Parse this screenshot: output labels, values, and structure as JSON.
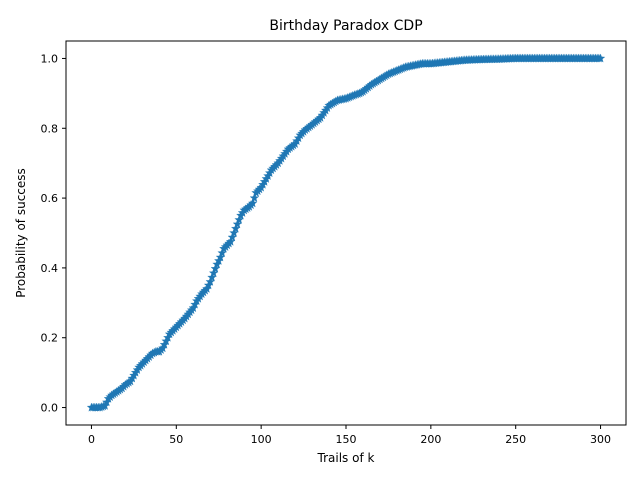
{
  "chart_data": {
    "type": "line",
    "title": "Birthday Paradox CDP",
    "xlabel": "Trails of k",
    "ylabel": "Probability of success",
    "xlim": [
      -15,
      315
    ],
    "ylim": [
      -0.05,
      1.05
    ],
    "xticks": [
      0,
      50,
      100,
      150,
      200,
      250,
      300
    ],
    "xtick_labels": [
      "0",
      "50",
      "100",
      "150",
      "200",
      "250",
      "300"
    ],
    "yticks": [
      0.0,
      0.2,
      0.4,
      0.6,
      0.8,
      1.0
    ],
    "ytick_labels": [
      "0.0",
      "0.2",
      "0.4",
      "0.6",
      "0.8",
      "1.0"
    ],
    "grid": false,
    "marker": "star",
    "line_color": "#1f77b4",
    "series": [
      {
        "x": [
          0,
          5,
          8,
          10,
          12,
          15,
          18,
          20,
          23,
          26,
          28,
          30,
          33,
          36,
          38,
          40,
          42,
          44,
          46,
          48,
          50,
          55,
          60,
          62,
          65,
          68,
          70,
          72,
          74,
          76,
          78,
          80,
          82,
          84,
          86,
          88,
          90,
          93,
          95,
          97,
          100,
          103,
          106,
          110,
          113,
          116,
          120,
          123,
          126,
          130,
          135,
          140,
          145,
          150,
          155,
          158,
          160,
          165,
          170,
          175,
          180,
          185,
          190,
          195,
          200,
          210,
          220,
          230,
          240,
          250,
          260,
          270,
          280,
          290,
          300
        ],
        "y": [
          0.0,
          0.0,
          0.005,
          0.025,
          0.035,
          0.045,
          0.055,
          0.065,
          0.075,
          0.1,
          0.115,
          0.125,
          0.14,
          0.155,
          0.16,
          0.16,
          0.17,
          0.19,
          0.21,
          0.22,
          0.23,
          0.255,
          0.285,
          0.305,
          0.325,
          0.34,
          0.36,
          0.385,
          0.41,
          0.43,
          0.455,
          0.465,
          0.475,
          0.5,
          0.525,
          0.55,
          0.565,
          0.575,
          0.585,
          0.615,
          0.63,
          0.655,
          0.68,
          0.7,
          0.72,
          0.74,
          0.755,
          0.78,
          0.795,
          0.81,
          0.83,
          0.865,
          0.88,
          0.885,
          0.895,
          0.9,
          0.905,
          0.925,
          0.94,
          0.955,
          0.965,
          0.975,
          0.98,
          0.985,
          0.985,
          0.99,
          0.995,
          0.997,
          0.998,
          1.0,
          1.0,
          1.0,
          1.0,
          1.0,
          1.0
        ]
      }
    ]
  }
}
